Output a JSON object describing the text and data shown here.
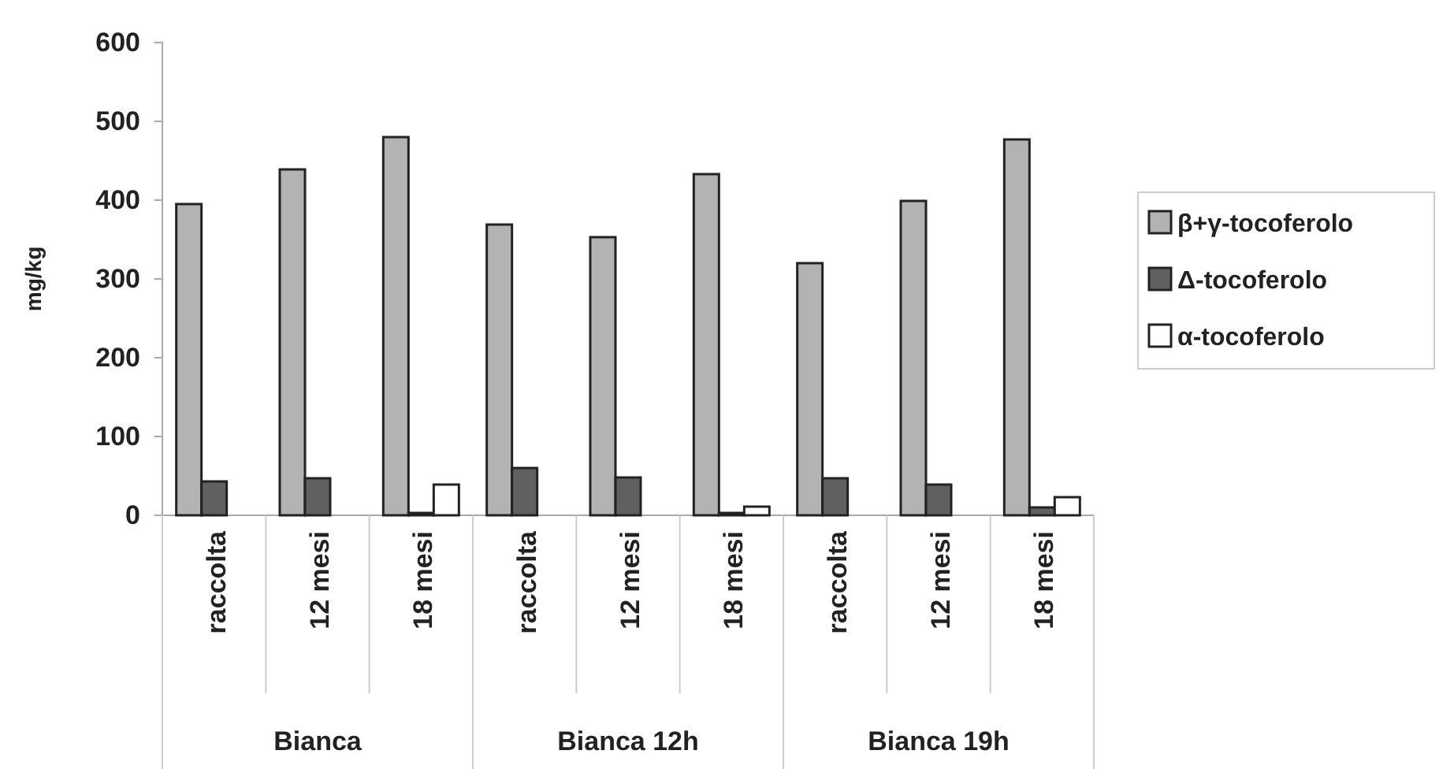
{
  "chart_data": {
    "type": "bar",
    "ylabel": "mg/kg",
    "categories": [
      "raccolta",
      "12 mesi",
      "18 mesi",
      "raccolta",
      "12 mesi",
      "18 mesi",
      "raccolta",
      "12 mesi",
      "18 mesi"
    ],
    "series": [
      {
        "name": "β+γ-tocoferolo",
        "color": "#b3b3b3",
        "values": [
          395,
          439,
          480,
          369,
          353,
          433,
          320,
          399,
          477
        ]
      },
      {
        "name": "Δ-tocoferolo",
        "color": "#606060",
        "values": [
          43,
          47,
          3,
          60,
          48,
          3,
          47,
          39,
          10
        ]
      },
      {
        "name": "α-tocoferolo",
        "color": "#ffffff",
        "values": [
          null,
          null,
          39,
          null,
          null,
          11,
          null,
          null,
          23
        ]
      }
    ],
    "annotations": [
      "Bianca",
      "Bianca 12h",
      "Bianca 19h"
    ],
    "ylim": [
      0,
      600
    ],
    "yticks": [
      0,
      100,
      200,
      300,
      400,
      500,
      600
    ],
    "grid": false,
    "legend": "right"
  }
}
